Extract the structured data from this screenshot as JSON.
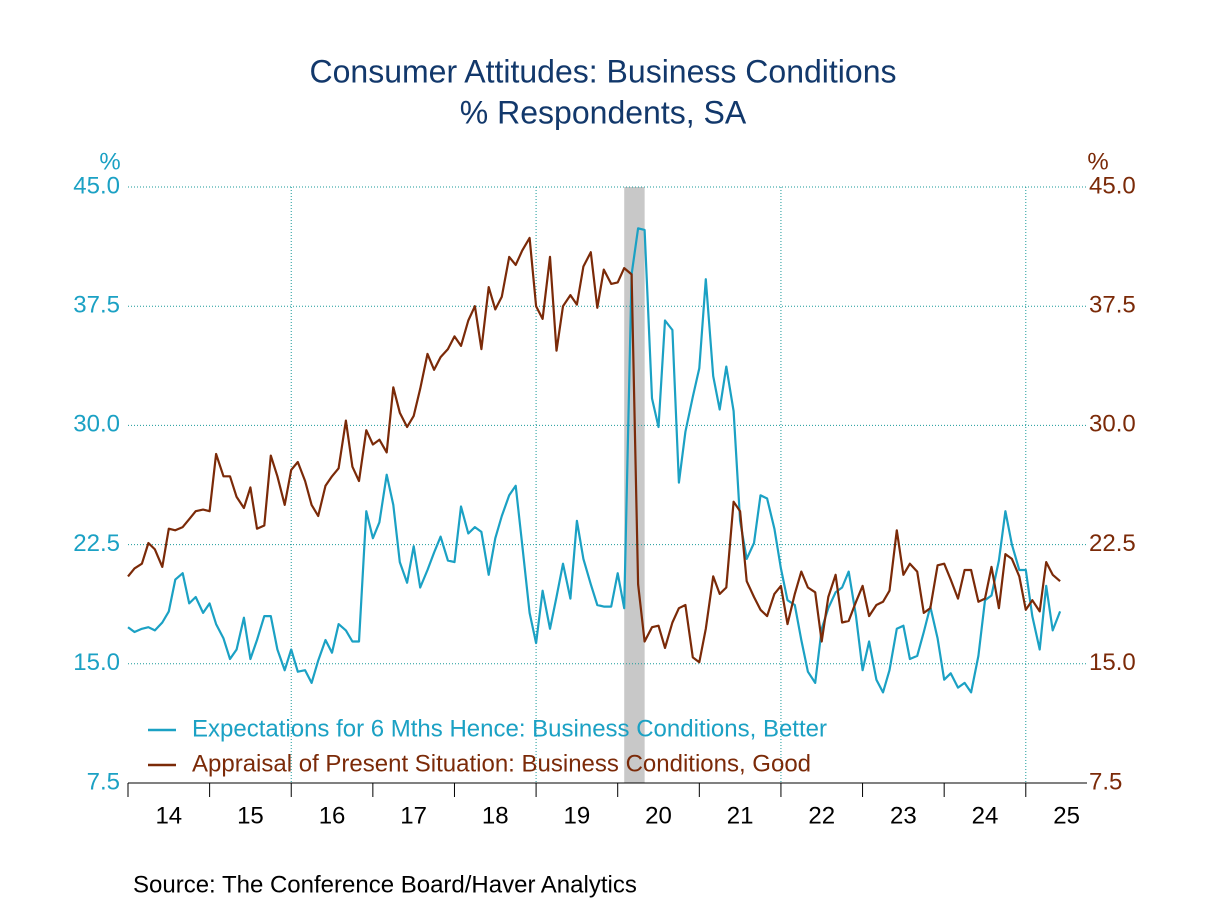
{
  "chart_data": {
    "type": "line",
    "title": "Consumer Attitudes: Business Conditions",
    "subtitle": "% Respondents, SA",
    "source": "Source:  The Conference Board/Haver Analytics",
    "y_unit": "%",
    "y2_unit": "%",
    "xlim": [
      2014,
      2025.75
    ],
    "xticks": [
      {
        "value": 2014,
        "label": "14"
      },
      {
        "value": 2015,
        "label": "15"
      },
      {
        "value": 2016,
        "label": "16"
      },
      {
        "value": 2017,
        "label": "17"
      },
      {
        "value": 2018,
        "label": "18"
      },
      {
        "value": 2019,
        "label": "19"
      },
      {
        "value": 2020,
        "label": "20"
      },
      {
        "value": 2021,
        "label": "21"
      },
      {
        "value": 2022,
        "label": "22"
      },
      {
        "value": 2023,
        "label": "23"
      },
      {
        "value": 2024,
        "label": "24"
      },
      {
        "value": 2025,
        "label": "25"
      }
    ],
    "xgrid": [
      2016,
      2019,
      2022,
      2025
    ],
    "shaded_periods": [
      [
        2020.08,
        2020.33
      ]
    ],
    "ylim": [
      7.5,
      45
    ],
    "yticks": [
      {
        "value": 7.5,
        "label": "7.5"
      },
      {
        "value": 15,
        "label": "15.0"
      },
      {
        "value": 22.5,
        "label": "22.5"
      },
      {
        "value": 30,
        "label": "30.0"
      },
      {
        "value": 37.5,
        "label": "37.5"
      },
      {
        "value": 45,
        "label": "45.0"
      }
    ],
    "y2lim": [
      7.5,
      45
    ],
    "y2ticks": [
      {
        "value": 7.5,
        "label": "7.5"
      },
      {
        "value": 15,
        "label": "15.0"
      },
      {
        "value": 22.5,
        "label": "22.5"
      },
      {
        "value": 30,
        "label": "30.0"
      },
      {
        "value": 37.5,
        "label": "37.5"
      },
      {
        "value": 45,
        "label": "45.0"
      }
    ],
    "grid": true,
    "legend": "lower left",
    "x": [
      2014,
      2014.08,
      2014.17,
      2014.25,
      2014.33,
      2014.42,
      2014.5,
      2014.58,
      2014.67,
      2014.75,
      2014.83,
      2014.92,
      2015,
      2015.08,
      2015.17,
      2015.25,
      2015.33,
      2015.42,
      2015.5,
      2015.58,
      2015.67,
      2015.75,
      2015.83,
      2015.92,
      2016,
      2016.08,
      2016.17,
      2016.25,
      2016.33,
      2016.42,
      2016.5,
      2016.58,
      2016.67,
      2016.75,
      2016.83,
      2016.92,
      2017,
      2017.08,
      2017.17,
      2017.25,
      2017.33,
      2017.42,
      2017.5,
      2017.58,
      2017.67,
      2017.75,
      2017.83,
      2017.92,
      2018,
      2018.08,
      2018.17,
      2018.25,
      2018.33,
      2018.42,
      2018.5,
      2018.58,
      2018.67,
      2018.75,
      2018.83,
      2018.92,
      2019,
      2019.08,
      2019.17,
      2019.25,
      2019.33,
      2019.42,
      2019.5,
      2019.58,
      2019.67,
      2019.75,
      2019.83,
      2019.92,
      2020,
      2020.08,
      2020.17,
      2020.25,
      2020.33,
      2020.42,
      2020.5,
      2020.58,
      2020.67,
      2020.75,
      2020.83,
      2020.92,
      2021,
      2021.08,
      2021.17,
      2021.25,
      2021.33,
      2021.42,
      2021.5,
      2021.58,
      2021.67,
      2021.75,
      2021.83,
      2021.92,
      2022,
      2022.08,
      2022.17,
      2022.25,
      2022.33,
      2022.42,
      2022.5,
      2022.58,
      2022.67,
      2022.75,
      2022.83,
      2022.92,
      2023,
      2023.08,
      2023.17,
      2023.25,
      2023.33,
      2023.42,
      2023.5,
      2023.58,
      2023.67,
      2023.75,
      2023.83,
      2023.92,
      2024,
      2024.08,
      2024.17,
      2024.25,
      2024.33,
      2024.42,
      2024.5,
      2024.58,
      2024.67,
      2024.75,
      2024.83,
      2024.92,
      2025,
      2025.08,
      2025.17,
      2025.25,
      2025.33,
      2025.42
    ],
    "series": [
      {
        "name": "Expectations for 6 Mths Hence: Business Conditions, Better",
        "color": "#1ba1c4",
        "axis": "y",
        "values": [
          17.3,
          17.0,
          17.2,
          17.3,
          17.1,
          17.6,
          18.3,
          20.3,
          20.7,
          18.8,
          19.2,
          18.2,
          18.8,
          17.5,
          16.6,
          15.3,
          15.9,
          17.9,
          15.3,
          16.5,
          18.0,
          18.0,
          15.9,
          14.6,
          15.9,
          14.5,
          14.6,
          13.8,
          15.2,
          16.5,
          15.7,
          17.5,
          17.1,
          16.4,
          16.4,
          24.6,
          22.9,
          23.9,
          26.9,
          25.0,
          21.4,
          20.1,
          22.4,
          19.8,
          20.9,
          22.0,
          23.0,
          21.5,
          21.4,
          24.9,
          23.2,
          23.6,
          23.3,
          20.6,
          22.9,
          24.3,
          25.6,
          26.2,
          22.5,
          18.2,
          16.3,
          19.6,
          17.2,
          19.2,
          21.3,
          19.1,
          24.0,
          21.6,
          20.0,
          18.7,
          18.6,
          18.6,
          20.7,
          18.5,
          39.5,
          42.4,
          42.3,
          31.7,
          29.9,
          36.6,
          36.0,
          26.4,
          29.6,
          31.8,
          33.6,
          39.2,
          33.1,
          31.0,
          33.7,
          30.9,
          24.0,
          21.6,
          22.6,
          25.6,
          25.4,
          23.5,
          21.0,
          19.0,
          18.7,
          16.5,
          14.5,
          13.8,
          17.2,
          18.5,
          19.5,
          19.8,
          20.8,
          18.0,
          14.6,
          16.4,
          14.0,
          13.2,
          14.6,
          17.2,
          17.4,
          15.3,
          15.5,
          17.0,
          18.6,
          16.6,
          14.0,
          14.4,
          13.5,
          13.8,
          13.2,
          15.5,
          19.0,
          19.3,
          21.5,
          24.6,
          22.5,
          20.9,
          20.9,
          18.0,
          15.9,
          19.9,
          17.1,
          18.3
        ]
      },
      {
        "name": "Appraisal of Present Situation: Business Conditions, Good",
        "color": "#7b2a08",
        "axis": "y2",
        "values": [
          20.5,
          21.0,
          21.3,
          22.6,
          22.2,
          21.1,
          23.5,
          23.4,
          23.6,
          24.1,
          24.6,
          24.7,
          24.6,
          28.2,
          26.8,
          26.8,
          25.5,
          24.8,
          26.1,
          23.5,
          23.7,
          28.1,
          26.8,
          25.0,
          27.2,
          27.7,
          26.5,
          25.0,
          24.3,
          26.2,
          26.8,
          27.3,
          30.3,
          27.4,
          26.5,
          29.7,
          28.8,
          29.1,
          28.3,
          32.4,
          30.8,
          29.9,
          30.6,
          32.3,
          34.5,
          33.5,
          34.3,
          34.8,
          35.6,
          35.0,
          36.6,
          37.5,
          34.8,
          38.7,
          37.3,
          38.1,
          40.6,
          40.1,
          41.0,
          41.8,
          37.5,
          36.7,
          40.6,
          34.7,
          37.5,
          38.2,
          37.6,
          40.0,
          40.9,
          37.4,
          39.8,
          38.9,
          39.0,
          39.9,
          39.5,
          20.0,
          16.4,
          17.3,
          17.4,
          16.0,
          17.6,
          18.5,
          18.7,
          15.4,
          15.1,
          17.2,
          20.5,
          19.4,
          19.8,
          25.2,
          24.6,
          20.2,
          19.2,
          18.4,
          18.0,
          19.4,
          19.9,
          17.5,
          19.4,
          20.8,
          19.8,
          19.5,
          16.4,
          19.2,
          20.6,
          17.6,
          17.7,
          18.9,
          19.9,
          18.0,
          18.7,
          18.9,
          19.6,
          23.4,
          20.6,
          21.3,
          20.8,
          18.2,
          18.5,
          21.2,
          21.3,
          20.3,
          19.1,
          20.9,
          20.9,
          18.9,
          19.1,
          21.1,
          18.5,
          21.9,
          21.6,
          20.5,
          18.4,
          19.0,
          18.3,
          21.4,
          20.6,
          20.2
        ]
      }
    ]
  }
}
